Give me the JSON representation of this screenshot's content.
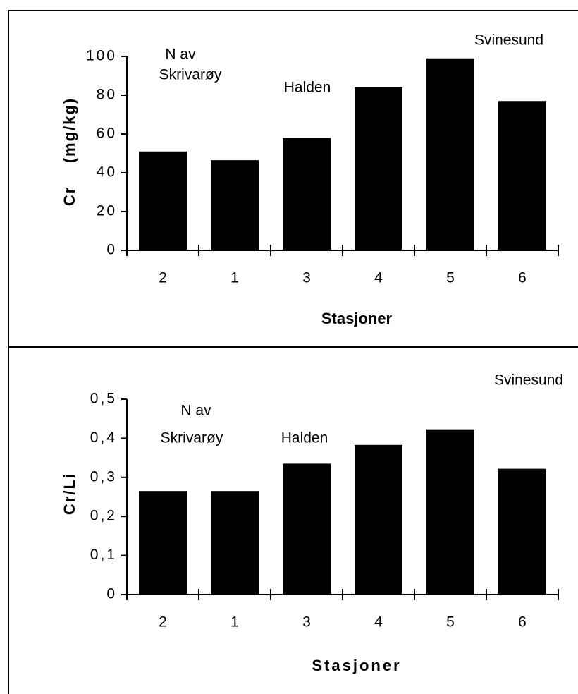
{
  "chart_data": [
    {
      "type": "bar",
      "y_label": "Cr    (mg/kg)",
      "x_label": "Stasjoner",
      "categories": [
        "2",
        "1",
        "3",
        "4",
        "5",
        "6"
      ],
      "values": [
        51,
        46.5,
        58,
        84,
        99,
        77
      ],
      "color": "#000000",
      "ylim": [
        0,
        100
      ],
      "yticks": [
        0,
        20,
        40,
        60,
        80,
        100
      ],
      "annotations": [
        "N av",
        "Skrivarøy",
        "Halden",
        "Svinesund"
      ]
    },
    {
      "type": "bar",
      "y_label": "Cr/Li",
      "x_label": "Stasjoner",
      "categories": [
        "2",
        "1",
        "3",
        "4",
        "5",
        "6"
      ],
      "values": [
        0.265,
        0.265,
        0.335,
        0.383,
        0.423,
        0.322
      ],
      "color": "#000000",
      "ylim": [
        0,
        0.5
      ],
      "yticks": [
        0,
        {
          "value": 0.1,
          "label": "0,1"
        },
        {
          "value": 0.2,
          "label": "0,2"
        },
        {
          "value": 0.3,
          "label": "0,3"
        },
        {
          "value": 0.4,
          "label": "0,4"
        },
        {
          "value": 0.5,
          "label": "0,5"
        }
      ],
      "annotations": [
        "N av",
        "Skrivarøy",
        "Halden",
        "Svinesund"
      ]
    }
  ]
}
